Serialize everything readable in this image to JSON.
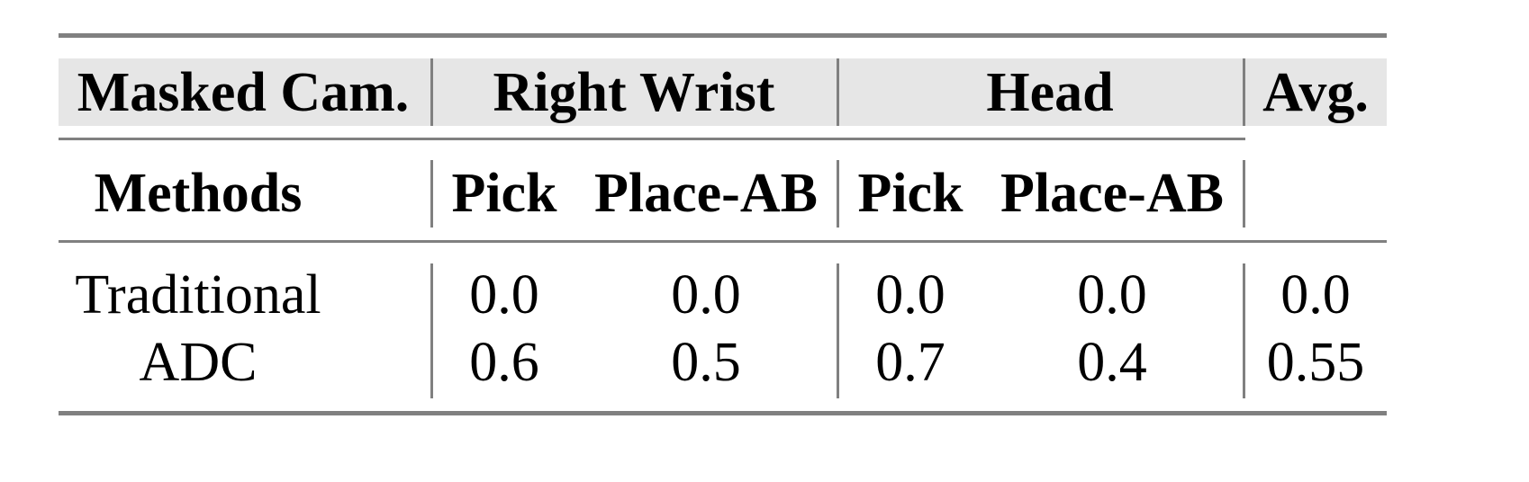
{
  "table": {
    "header_row1": {
      "masked_cam": "Masked Cam.",
      "right_wrist": "Right Wrist",
      "head": "Head",
      "avg": "Avg."
    },
    "header_row2": {
      "methods": "Methods",
      "columns": [
        "Pick",
        "Place-AB",
        "Pick",
        "Place-AB"
      ]
    },
    "rows": [
      {
        "method": "Traditional",
        "values": [
          "0.0",
          "0.0",
          "0.0",
          "0.0",
          "0.0"
        ]
      },
      {
        "method": "ADC",
        "values": [
          "0.6",
          "0.5",
          "0.7",
          "0.4",
          "0.55"
        ]
      }
    ],
    "header_bg_color": "#e6e6e6",
    "rule_color": "#808080"
  }
}
